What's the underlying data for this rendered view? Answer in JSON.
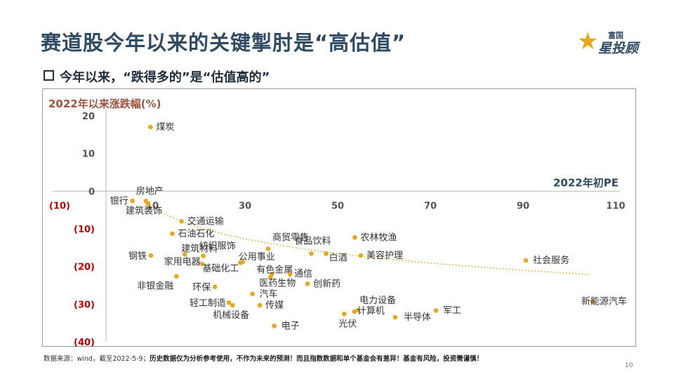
{
  "title": "赛道股今年以来的关键掣肘是“高估值”",
  "subtitle": "今年以来，“跌得多的”是“估值高的”",
  "logo": {
    "small": "富国",
    "big": "星投顾",
    "star_color": "#e6a91c"
  },
  "footnote": {
    "source": "数据来源：wind，截至2022-5-9；",
    "disclaimer": "历史数据仅为分析参考使用，不作为未来的预测！而且指数数据和单个基金会有差异！基金有风险，投资需谨慎！"
  },
  "page_number": "10",
  "chart_data": {
    "type": "scatter",
    "ylabel": "2022年以来涨跌幅(%)",
    "xlabel": "2022年初PE",
    "xlim": [
      -10,
      110
    ],
    "ylim": [
      -40,
      20
    ],
    "x_ticks": [
      -10,
      10,
      30,
      50,
      70,
      90,
      110
    ],
    "x_tick_labels": [
      "(10)",
      "10",
      "30",
      "50",
      "70",
      "90",
      "110"
    ],
    "y_ticks": [
      20,
      10,
      0,
      -10,
      -20,
      -30,
      -40
    ],
    "y_tick_labels": [
      "20",
      "10",
      "0",
      "(10)",
      "(20)",
      "(30)",
      "(40)"
    ],
    "grid": false,
    "trendline": "dotted",
    "colors": {
      "point": "#e6a91c",
      "trend": "#e6a91c",
      "axis_title_y": "#a0523d",
      "axis_title_x": "#2f4a63",
      "negative_tick": "#c00000"
    },
    "points": [
      {
        "name": "煤炭",
        "x": 9.6,
        "y": 17.0
      },
      {
        "name": "银行",
        "x": 5.7,
        "y": -2.6
      },
      {
        "name": "房地产",
        "x": 8.6,
        "y": -2.6
      },
      {
        "name": "建筑装饰",
        "x": 9.1,
        "y": -3.4
      },
      {
        "name": "交通运输",
        "x": 16.3,
        "y": -8.0
      },
      {
        "name": "石油石化",
        "x": 14.3,
        "y": -11.3
      },
      {
        "name": "纺织服饰",
        "x": 21.0,
        "y": -17.2
      },
      {
        "name": "建筑材料",
        "x": 17.0,
        "y": -16.8
      },
      {
        "name": "钢铁",
        "x": 9.7,
        "y": -17.1
      },
      {
        "name": "家用电器",
        "x": 20.7,
        "y": -19.3
      },
      {
        "name": "基础化工",
        "x": 29.0,
        "y": -19.0
      },
      {
        "name": "商贸零售",
        "x": 35.0,
        "y": -15.3
      },
      {
        "name": "公用事业",
        "x": 29.5,
        "y": -18.8
      },
      {
        "name": "有色金属",
        "x": 35.8,
        "y": -22.0
      },
      {
        "name": "食品饮料",
        "x": 44.3,
        "y": -16.6
      },
      {
        "name": "白酒",
        "x": 47.5,
        "y": -16.6
      },
      {
        "name": "农林牧渔",
        "x": 53.7,
        "y": -12.3
      },
      {
        "name": "美容护理",
        "x": 55.0,
        "y": -17.1
      },
      {
        "name": "通信",
        "x": 39.7,
        "y": -22.1
      },
      {
        "name": "医药生物",
        "x": 35.5,
        "y": -22.8
      },
      {
        "name": "非银金融",
        "x": 15.2,
        "y": -22.6
      },
      {
        "name": "环保",
        "x": 23.5,
        "y": -25.4
      },
      {
        "name": "创新药",
        "x": 43.5,
        "y": -24.6
      },
      {
        "name": "汽车",
        "x": 31.6,
        "y": -27.3
      },
      {
        "name": "轻工制造",
        "x": 26.5,
        "y": -29.6
      },
      {
        "name": "传媒",
        "x": 33.2,
        "y": -30.3
      },
      {
        "name": "机械设备",
        "x": 27.3,
        "y": -30.3
      },
      {
        "name": "电力设备",
        "x": 54.4,
        "y": -31.6
      },
      {
        "name": "计算机",
        "x": 53.6,
        "y": -32.0
      },
      {
        "name": "光伏",
        "x": 51.4,
        "y": -32.6
      },
      {
        "name": "半导体",
        "x": 62.4,
        "y": -33.5
      },
      {
        "name": "军工",
        "x": 71.2,
        "y": -31.7
      },
      {
        "name": "电子",
        "x": 36.3,
        "y": -35.8
      },
      {
        "name": "社会服务",
        "x": 90.6,
        "y": -18.4
      },
      {
        "name": "新能源汽车",
        "x": 105.0,
        "y": -29.3
      }
    ]
  }
}
